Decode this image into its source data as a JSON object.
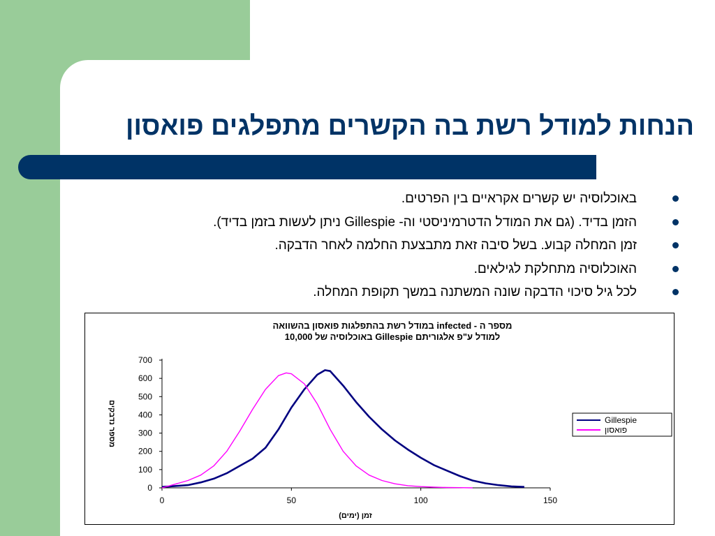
{
  "slide": {
    "title": "הנחות למודל רשת בה הקשרים מתפלגים פואסון",
    "bullets": [
      "באוכלוסיה יש קשרים אקראיים בין הפרטים.",
      "הזמן בדיד. (גם את המודל הדטרמיניסטי וה- Gillespie ניתן לעשות בזמן בדיד).",
      "זמן המחלה קבוע. בשל סיבה זאת מתבצעת החלמה לאחר הדבקה.",
      "האוכלוסיה מתחלקת לגילאים.",
      "לכל גיל סיכוי הדבקה שונה המשתנה במשך תקופת המחלה."
    ],
    "colors": {
      "green": "#99cc99",
      "navy": "#003366"
    }
  },
  "chart_data": {
    "type": "line",
    "title_line1": "מספר ה - infected במודל רשת בהתפלגות פואסון בהשוואה",
    "title_line2": "למודל ע\"פ אלגוריתם Gillespie באוכלוסיה של 10,000",
    "xlabel": "זמן (ימים)",
    "ylabel": "מספר נדבקים",
    "xlim": [
      0,
      150
    ],
    "ylim": [
      0,
      700
    ],
    "x_ticks": [
      "0",
      "50",
      "100",
      "150"
    ],
    "y_ticks": [
      "0",
      "100",
      "200",
      "300",
      "400",
      "500",
      "600",
      "700"
    ],
    "legend_position": "right",
    "series": [
      {
        "name": "Gillespie",
        "color": "#000080",
        "x": [
          0,
          5,
          10,
          15,
          20,
          25,
          30,
          35,
          40,
          45,
          50,
          55,
          60,
          63,
          65,
          70,
          75,
          80,
          85,
          90,
          95,
          100,
          105,
          110,
          115,
          120,
          125,
          130,
          135,
          140
        ],
        "y": [
          5,
          10,
          15,
          30,
          50,
          80,
          120,
          160,
          220,
          320,
          440,
          540,
          620,
          645,
          640,
          560,
          470,
          390,
          320,
          260,
          210,
          165,
          125,
          95,
          65,
          40,
          25,
          15,
          8,
          5
        ]
      },
      {
        "name": "פואסון",
        "color": "#ff00ff",
        "x": [
          0,
          5,
          10,
          15,
          20,
          25,
          30,
          35,
          40,
          45,
          48,
          50,
          55,
          60,
          65,
          70,
          75,
          80,
          85,
          90,
          95,
          100,
          105,
          110,
          115,
          120
        ],
        "y": [
          0,
          20,
          40,
          70,
          120,
          200,
          310,
          430,
          540,
          615,
          630,
          625,
          570,
          460,
          320,
          200,
          120,
          70,
          40,
          22,
          12,
          7,
          4,
          2,
          1,
          0
        ]
      }
    ]
  }
}
